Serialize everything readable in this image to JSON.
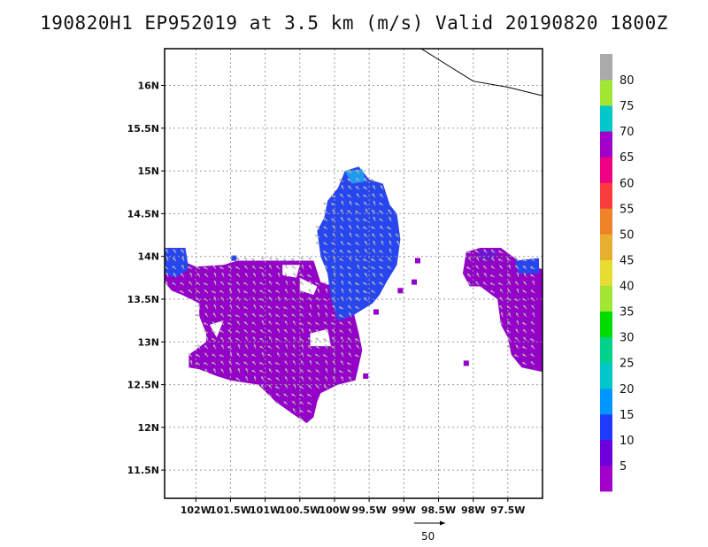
{
  "title": "190820H1 EP952019 at 3.5 km (m/s) Valid 20190820 1800Z",
  "map": {
    "lat_labels": [
      "16N",
      "15.5N",
      "15N",
      "14.5N",
      "14N",
      "13.5N",
      "13N",
      "12.5N",
      "12N",
      "11.5N"
    ],
    "lon_labels": [
      "102W",
      "101.5W",
      "101W",
      "100.5W",
      "100W",
      "99.5W",
      "99W",
      "98.5W",
      "98W",
      "97.5W"
    ],
    "lat_range": [
      11.17,
      16.43
    ],
    "lon_range": [
      102.45,
      97.0
    ],
    "grid": true,
    "coastline": [
      [
        98.75,
        16.43
      ],
      [
        98.0,
        16.05
      ],
      [
        97.5,
        15.98
      ],
      [
        97.0,
        15.88
      ]
    ]
  },
  "colorbar": {
    "labels": [
      "5",
      "10",
      "15",
      "20",
      "25",
      "30",
      "35",
      "40",
      "45",
      "50",
      "55",
      "60",
      "65",
      "70",
      "75",
      "80"
    ],
    "colors": [
      "#a000c8",
      "#6e00dc",
      "#1e3cff",
      "#0096ff",
      "#00c8c8",
      "#00d28c",
      "#00dc00",
      "#a0e632",
      "#e6dc32",
      "#e6af2d",
      "#f08228",
      "#fa3c3c",
      "#f00082",
      "#a000c8",
      "#00c8c8",
      "#a0e632",
      "#aaaaaa"
    ]
  },
  "reference_vector": {
    "label": "50"
  },
  "wind_field_colors": {
    "low": "#9400c8",
    "mid": "#6e14d2",
    "high": "#2846f0",
    "highest": "#1e9bf0",
    "arrows": "#b4b4b4"
  }
}
